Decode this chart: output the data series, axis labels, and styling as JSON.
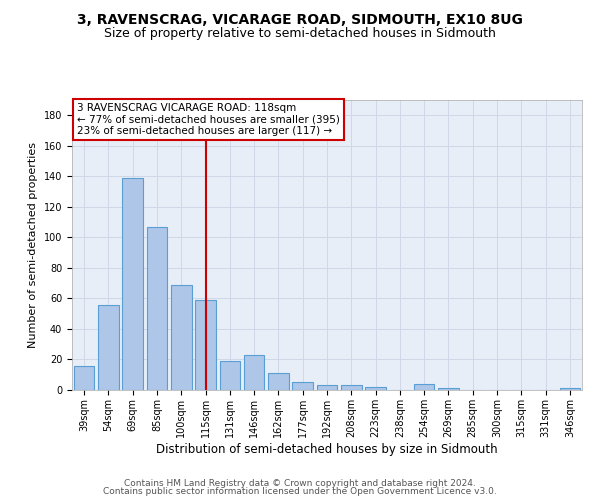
{
  "title": "3, RAVENSCRAG, VICARAGE ROAD, SIDMOUTH, EX10 8UG",
  "subtitle": "Size of property relative to semi-detached houses in Sidmouth",
  "xlabel": "Distribution of semi-detached houses by size in Sidmouth",
  "ylabel": "Number of semi-detached properties",
  "categories": [
    "39sqm",
    "54sqm",
    "69sqm",
    "85sqm",
    "100sqm",
    "115sqm",
    "131sqm",
    "146sqm",
    "162sqm",
    "177sqm",
    "192sqm",
    "208sqm",
    "223sqm",
    "238sqm",
    "254sqm",
    "269sqm",
    "285sqm",
    "300sqm",
    "315sqm",
    "331sqm",
    "346sqm"
  ],
  "values": [
    16,
    56,
    139,
    107,
    69,
    59,
    19,
    23,
    11,
    5,
    3,
    3,
    2,
    0,
    4,
    1,
    0,
    0,
    0,
    0,
    1
  ],
  "bar_color": "#aec6e8",
  "bar_edge_color": "#5a9fd4",
  "vline_x": 5,
  "vline_color": "#cc0000",
  "annotation_text": "3 RAVENSCRAG VICARAGE ROAD: 118sqm\n← 77% of semi-detached houses are smaller (395)\n23% of semi-detached houses are larger (117) →",
  "annotation_box_color": "#ffffff",
  "annotation_box_edge": "#cc0000",
  "ylim": [
    0,
    190
  ],
  "yticks": [
    0,
    20,
    40,
    60,
    80,
    100,
    120,
    140,
    160,
    180
  ],
  "grid_color": "#d0d8e8",
  "background_color": "#e8eef8",
  "footer_line1": "Contains HM Land Registry data © Crown copyright and database right 2024.",
  "footer_line2": "Contains public sector information licensed under the Open Government Licence v3.0.",
  "title_fontsize": 10,
  "subtitle_fontsize": 9,
  "xlabel_fontsize": 8.5,
  "ylabel_fontsize": 8,
  "tick_fontsize": 7,
  "annotation_fontsize": 7.5,
  "footer_fontsize": 6.5
}
